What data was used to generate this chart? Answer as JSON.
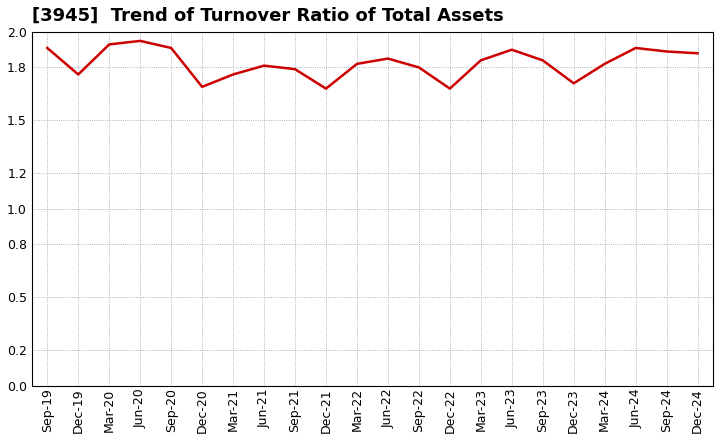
{
  "title": "[3945]  Trend of Turnover Ratio of Total Assets",
  "x_labels": [
    "Sep-19",
    "Dec-19",
    "Mar-20",
    "Jun-20",
    "Sep-20",
    "Dec-20",
    "Mar-21",
    "Jun-21",
    "Sep-21",
    "Dec-21",
    "Mar-22",
    "Jun-22",
    "Sep-22",
    "Dec-22",
    "Mar-23",
    "Jun-23",
    "Sep-23",
    "Dec-23",
    "Mar-24",
    "Jun-24",
    "Sep-24",
    "Dec-24"
  ],
  "values": [
    1.91,
    1.76,
    1.93,
    1.95,
    1.91,
    1.69,
    1.76,
    1.81,
    1.79,
    1.68,
    1.82,
    1.85,
    1.8,
    1.68,
    1.84,
    1.9,
    1.84,
    1.71,
    1.82,
    1.91,
    1.89,
    1.88
  ],
  "line_color": "#cc0000",
  "line_width": 1.8,
  "ylim": [
    0.0,
    2.0
  ],
  "yticks": [
    0.0,
    0.2,
    0.5,
    0.8,
    1.0,
    1.2,
    1.5,
    1.8,
    2.0
  ],
  "background_color": "#ffffff",
  "grid_color": "#999999",
  "title_fontsize": 13,
  "tick_fontsize": 9
}
